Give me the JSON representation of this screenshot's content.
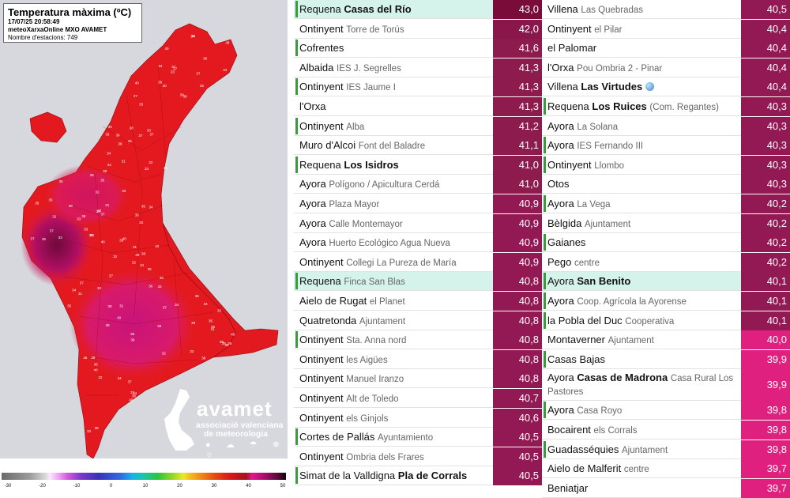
{
  "map": {
    "title": "Temperatura màxima (ºC)",
    "datetime": "17/07/25 20:58:49",
    "source": "meteoXarxaOnline MXO AVAMET",
    "station_count": "Nombre d'estacions: 749",
    "logo": {
      "name": "avamet",
      "subtitle_1": "associació valenciana",
      "subtitle_2": "de meteorologia",
      "weather_icons": "● ☁ ☂ ❄ ☼"
    },
    "colorbar_ticks": [
      "-30",
      "-20",
      "-10",
      "0",
      "10",
      "20",
      "30",
      "40",
      "50"
    ],
    "colorbar_tick_values": [
      -30,
      -20,
      -10,
      0,
      10,
      20,
      30,
      40,
      50
    ],
    "sea_color": "#d7d7de",
    "land_color": "#e41a1c",
    "hot_color": "#c2106a"
  },
  "colors": {
    "val_43": "#7a0c3a",
    "val_41": "#8d1b4e",
    "val_40": "#931954",
    "val_39": "#e0207f",
    "highlight": "#d5f2eb",
    "marker": "#3c9a3c"
  },
  "rows_left": [
    {
      "loc": "Requena",
      "place": "Casas del Río",
      "detail": "",
      "value": "43,0",
      "hl": true,
      "mark": true,
      "color": "#7a0c3a"
    },
    {
      "loc": "Ontinyent",
      "place": "",
      "detail": "Torre de Torús",
      "value": "42,0",
      "hl": false,
      "mark": false,
      "color": "#8a164b"
    },
    {
      "loc": "Cofrentes",
      "place": "",
      "detail": "",
      "value": "41,6",
      "hl": false,
      "mark": true,
      "color": "#8d1b4e"
    },
    {
      "loc": "Albaida",
      "place": "",
      "detail": "IES J. Segrelles",
      "value": "41,3",
      "hl": false,
      "mark": false,
      "color": "#8d1b4e"
    },
    {
      "loc": "Ontinyent",
      "place": "",
      "detail": "IES Jaume I",
      "value": "41,3",
      "hl": false,
      "mark": true,
      "color": "#8d1b4e"
    },
    {
      "loc": "l'Orxa",
      "place": "",
      "detail": "",
      "value": "41,3",
      "hl": false,
      "mark": false,
      "color": "#8d1b4e"
    },
    {
      "loc": "Ontinyent",
      "place": "",
      "detail": "Alba",
      "value": "41,2",
      "hl": false,
      "mark": true,
      "color": "#8d1b4e"
    },
    {
      "loc": "Muro d'Alcoi",
      "place": "",
      "detail": "Font del Baladre",
      "value": "41,1",
      "hl": false,
      "mark": false,
      "color": "#8d1b4e"
    },
    {
      "loc": "Requena",
      "place": "Los Isidros",
      "detail": "",
      "value": "41,0",
      "hl": false,
      "mark": true,
      "color": "#8d1b4e"
    },
    {
      "loc": "Ayora",
      "place": "",
      "detail": "Polígono / Apicultura Cerdá",
      "value": "41,0",
      "hl": false,
      "mark": false,
      "color": "#8d1b4e"
    },
    {
      "loc": "Ayora",
      "place": "",
      "detail": "Plaza Mayor",
      "value": "40,9",
      "hl": false,
      "mark": false,
      "color": "#931954"
    },
    {
      "loc": "Ayora",
      "place": "",
      "detail": "Calle Montemayor",
      "value": "40,9",
      "hl": false,
      "mark": false,
      "color": "#931954"
    },
    {
      "loc": "Ayora",
      "place": "",
      "detail": "Huerto Ecológico Agua Nueva",
      "value": "40,9",
      "hl": false,
      "mark": false,
      "color": "#931954"
    },
    {
      "loc": "Ontinyent",
      "place": "",
      "detail": "Collegi La Pureza de María",
      "value": "40,9",
      "hl": false,
      "mark": false,
      "color": "#931954"
    },
    {
      "loc": "Requena",
      "place": "",
      "detail": "Finca San Blas",
      "value": "40,8",
      "hl": true,
      "mark": true,
      "color": "#931954"
    },
    {
      "loc": "Aielo de Rugat",
      "place": "",
      "detail": "el Planet",
      "value": "40,8",
      "hl": false,
      "mark": false,
      "color": "#931954"
    },
    {
      "loc": "Quatretonda",
      "place": "",
      "detail": "Ajuntament",
      "value": "40,8",
      "hl": false,
      "mark": false,
      "color": "#931954"
    },
    {
      "loc": "Ontinyent",
      "place": "",
      "detail": "Sta. Anna nord",
      "value": "40,8",
      "hl": false,
      "mark": true,
      "color": "#931954"
    },
    {
      "loc": "Ontinyent",
      "place": "",
      "detail": "les Aigües",
      "value": "40,8",
      "hl": false,
      "mark": false,
      "color": "#931954"
    },
    {
      "loc": "Ontinyent",
      "place": "",
      "detail": "Manuel Iranzo",
      "value": "40,8",
      "hl": false,
      "mark": false,
      "color": "#931954"
    },
    {
      "loc": "Ontinyent",
      "place": "",
      "detail": "Alt de Toledo",
      "value": "40,7",
      "hl": false,
      "mark": false,
      "color": "#931954"
    },
    {
      "loc": "Ontinyent",
      "place": "",
      "detail": "els Ginjols",
      "value": "40,6",
      "hl": false,
      "mark": false,
      "color": "#931954"
    },
    {
      "loc": "Cortes de Pallás",
      "place": "",
      "detail": "Ayuntamiento",
      "value": "40,5",
      "hl": false,
      "mark": true,
      "color": "#931954"
    },
    {
      "loc": "Ontinyent",
      "place": "",
      "detail": "Ombria dels Frares",
      "value": "40,5",
      "hl": false,
      "mark": false,
      "color": "#931954"
    },
    {
      "loc": "Simat de la Valldigna",
      "place": "Pla de Corrals",
      "detail": "",
      "value": "40,5",
      "hl": false,
      "mark": true,
      "color": "#931954"
    }
  ],
  "rows_right": [
    {
      "loc": "Villena",
      "place": "",
      "detail": "Las Quebradas",
      "value": "40,5",
      "hl": false,
      "mark": false,
      "color": "#931954"
    },
    {
      "loc": "Ontinyent",
      "place": "",
      "detail": "el Pilar",
      "value": "40,4",
      "hl": false,
      "mark": false,
      "color": "#931954"
    },
    {
      "loc": "el Palomar",
      "place": "",
      "detail": "",
      "value": "40,4",
      "hl": false,
      "mark": false,
      "color": "#931954"
    },
    {
      "loc": "l'Orxa",
      "place": "",
      "detail": "Pou Ombria 2 - Pinar",
      "value": "40,4",
      "hl": false,
      "mark": false,
      "color": "#931954"
    },
    {
      "loc": "Villena",
      "place": "Las Virtudes",
      "detail": "",
      "value": "40,4",
      "hl": false,
      "mark": false,
      "color": "#931954",
      "globe": true
    },
    {
      "loc": "Requena",
      "place": "Los Ruices",
      "detail": "(Com. Regantes)",
      "value": "40,3",
      "hl": false,
      "mark": true,
      "color": "#931954"
    },
    {
      "loc": "Ayora",
      "place": "",
      "detail": "La Solana",
      "value": "40,3",
      "hl": false,
      "mark": false,
      "color": "#931954"
    },
    {
      "loc": "Ayora",
      "place": "",
      "detail": "IES Fernando III",
      "value": "40,3",
      "hl": false,
      "mark": true,
      "color": "#931954"
    },
    {
      "loc": "Ontinyent",
      "place": "",
      "detail": "Llombo",
      "value": "40,3",
      "hl": false,
      "mark": true,
      "color": "#931954"
    },
    {
      "loc": "Otos",
      "place": "",
      "detail": "",
      "value": "40,3",
      "hl": false,
      "mark": false,
      "color": "#931954"
    },
    {
      "loc": "Ayora",
      "place": "",
      "detail": "La Vega",
      "value": "40,2",
      "hl": false,
      "mark": true,
      "color": "#931954"
    },
    {
      "loc": "Bèlgida",
      "place": "",
      "detail": "Ajuntament",
      "value": "40,2",
      "hl": false,
      "mark": false,
      "color": "#931954"
    },
    {
      "loc": "Gaianes",
      "place": "",
      "detail": "",
      "value": "40,2",
      "hl": false,
      "mark": true,
      "color": "#931954"
    },
    {
      "loc": "Pego",
      "place": "",
      "detail": "centre",
      "value": "40,2",
      "hl": false,
      "mark": false,
      "color": "#931954"
    },
    {
      "loc": "Ayora",
      "place": "San Benito",
      "detail": "",
      "value": "40,1",
      "hl": true,
      "mark": true,
      "color": "#931954"
    },
    {
      "loc": "Ayora",
      "place": "",
      "detail": "Coop. Agrícola la Ayorense",
      "value": "40,1",
      "hl": false,
      "mark": true,
      "color": "#931954"
    },
    {
      "loc": "la Pobla del Duc",
      "place": "",
      "detail": "Cooperativa",
      "value": "40,1",
      "hl": false,
      "mark": true,
      "color": "#931954"
    },
    {
      "loc": "Montaverner",
      "place": "",
      "detail": "Ajuntament",
      "value": "40,0",
      "hl": false,
      "mark": false,
      "color": "#e0207f"
    },
    {
      "loc": "Casas Bajas",
      "place": "",
      "detail": "",
      "value": "39,9",
      "hl": false,
      "mark": true,
      "color": "#e0207f"
    },
    {
      "loc": "Ayora",
      "place": "Casas de Madrona",
      "detail": "Casa Rural Los Pastores",
      "value": "39,9",
      "hl": false,
      "mark": false,
      "color": "#e0207f",
      "tall": true
    },
    {
      "loc": "Ayora",
      "place": "",
      "detail": "Casa Royo",
      "value": "39,8",
      "hl": false,
      "mark": true,
      "color": "#e0207f"
    },
    {
      "loc": "Bocairent",
      "place": "",
      "detail": "els Corrals",
      "value": "39,8",
      "hl": false,
      "mark": false,
      "color": "#e0207f"
    },
    {
      "loc": "Guadasséquies",
      "place": "",
      "detail": "Ajuntament",
      "value": "39,8",
      "hl": false,
      "mark": true,
      "color": "#e0207f"
    },
    {
      "loc": "Aielo de Malferit",
      "place": "",
      "detail": "centre",
      "value": "39,7",
      "hl": false,
      "mark": false,
      "color": "#e0207f"
    },
    {
      "loc": "Beniatjar",
      "place": "",
      "detail": "",
      "value": "39,7",
      "hl": false,
      "mark": false,
      "color": "#e0207f"
    }
  ]
}
